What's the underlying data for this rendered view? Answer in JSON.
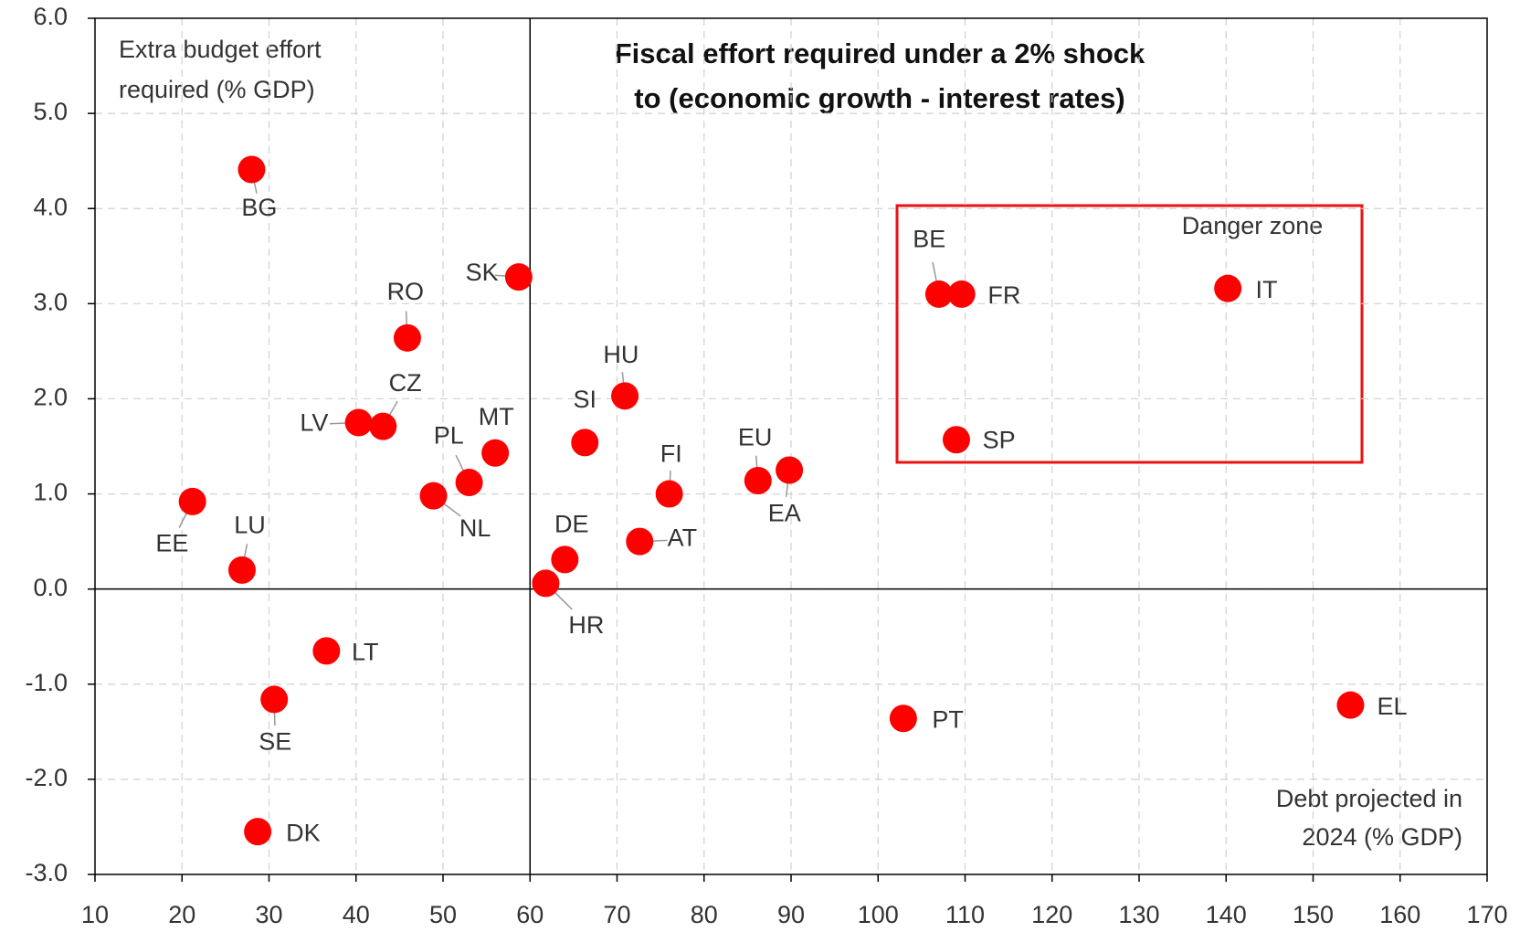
{
  "chart_data": {
    "type": "scatter",
    "title": [
      "Fiscal effort required under a 2% shock",
      "to (economic growth - interest rates)"
    ],
    "y_label": [
      "Extra budget effort",
      "required (% GDP)"
    ],
    "x_label": [
      "Debt projected in",
      "2024 (% GDP)"
    ],
    "annotation": "Danger zone",
    "labels": [
      "BG",
      "SK",
      "RO",
      "CZ",
      "LV",
      "PL",
      "MT",
      "NL",
      "EE",
      "LU",
      "HU",
      "SI",
      "FI",
      "EU",
      "EA",
      "DE",
      "HR",
      "AT",
      "BE",
      "FR",
      "SP",
      "IT",
      "LT",
      "SE",
      "DK",
      "PT",
      "EL"
    ],
    "x": [
      28.0,
      58.7,
      45.9,
      43.1,
      40.3,
      53.0,
      56.0,
      48.9,
      21.2,
      26.9,
      70.9,
      66.3,
      76.0,
      86.2,
      89.8,
      64.0,
      61.8,
      72.6,
      107.0,
      109.6,
      109.0,
      140.2,
      36.6,
      30.6,
      28.7,
      102.9,
      154.3
    ],
    "y": [
      4.41,
      3.28,
      2.64,
      1.71,
      1.75,
      1.12,
      1.43,
      0.98,
      0.92,
      0.2,
      2.03,
      1.54,
      1.0,
      1.14,
      1.25,
      0.31,
      0.06,
      0.5,
      3.1,
      3.1,
      1.57,
      3.16,
      -0.65,
      -1.16,
      -2.55,
      -1.36,
      -1.22
    ],
    "color": "#ff0000",
    "xlim": [
      10,
      170
    ],
    "ylim": [
      -3,
      6
    ],
    "xticks": [
      10,
      20,
      30,
      40,
      50,
      60,
      70,
      80,
      90,
      100,
      110,
      120,
      130,
      140,
      150,
      160,
      170
    ],
    "yticks": [
      {
        "value": -3,
        "label": "-3.0"
      },
      {
        "value": -2,
        "label": "-2.0"
      },
      {
        "value": -1,
        "label": "-1.0"
      },
      {
        "value": 0,
        "label": "0.0"
      },
      {
        "value": 1,
        "label": "1.0"
      },
      {
        "value": 2,
        "label": "2.0"
      },
      {
        "value": 3,
        "label": "3.0"
      },
      {
        "value": 4,
        "label": "4.0"
      },
      {
        "value": 5,
        "label": "5.0"
      },
      {
        "value": 6,
        "label": "6.0"
      }
    ],
    "grid": true,
    "vline": 60,
    "hline": 0
  }
}
